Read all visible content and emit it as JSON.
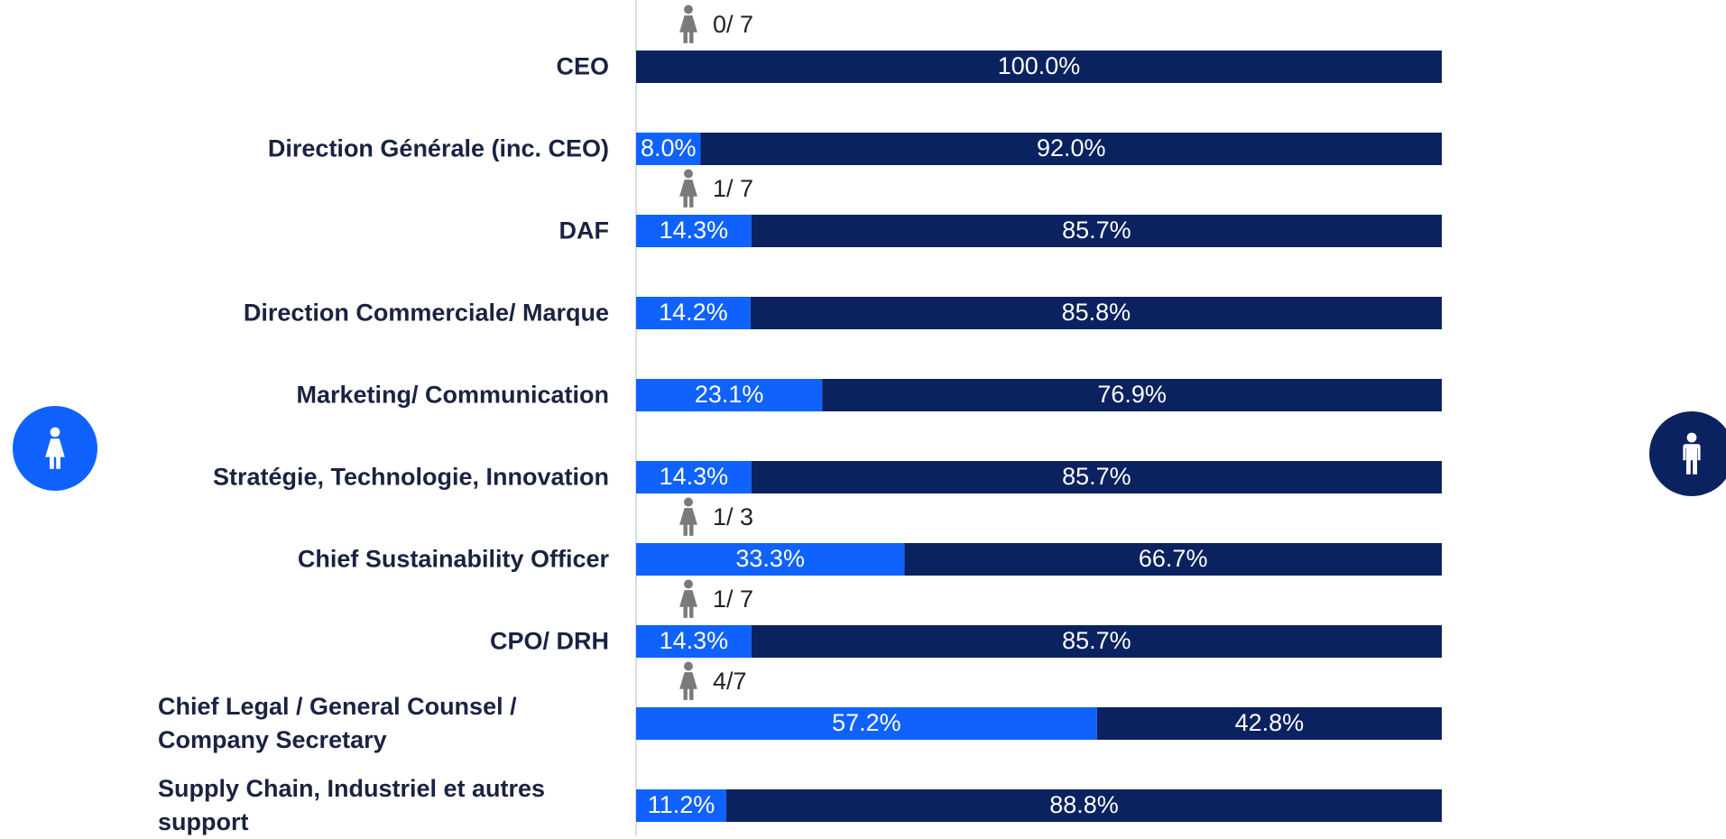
{
  "chart_data": {
    "type": "stacked-bar-horizontal",
    "categories": [
      "CEO",
      "Direction Générale (inc. CEO)",
      "DAF",
      "Direction Commerciale/ Marque",
      "Marketing/ Communication",
      "Stratégie, Technologie, Innovation",
      "Chief Sustainability Officer",
      "CPO/ DRH",
      "Chief Legal / General Counsel / Company Secretary",
      "Supply Chain, Industriel et autres support"
    ],
    "series": [
      {
        "color": "#0f62fe",
        "values": [
          0,
          8,
          14.3,
          14.2,
          23.1,
          14.3,
          33.3,
          14.3,
          57.2,
          11.2
        ],
        "value_labels": [
          "0.0%",
          "8.0%",
          "14.3%",
          "14.2%",
          "23.1%",
          "14.3%",
          "33.3%",
          "14.3%",
          "57.2%",
          "11.2%"
        ]
      },
      {
        "color": "#0b2260",
        "values": [
          100,
          92,
          85.7,
          85.8,
          76.9,
          85.7,
          66.7,
          85.7,
          42.8,
          88.8
        ],
        "value_labels": [
          "100.0%",
          "92.0%",
          "85.7%",
          "85.8%",
          "76.9%",
          "85.7%",
          "66.7%",
          "85.7%",
          "42.8%",
          "88.8%"
        ]
      }
    ],
    "fractions": [
      "0/ 7",
      null,
      "1/ 7",
      null,
      null,
      null,
      "1/ 3",
      "1/ 7",
      "4/7",
      null
    ],
    "xlim": [
      0,
      100
    ]
  }
}
